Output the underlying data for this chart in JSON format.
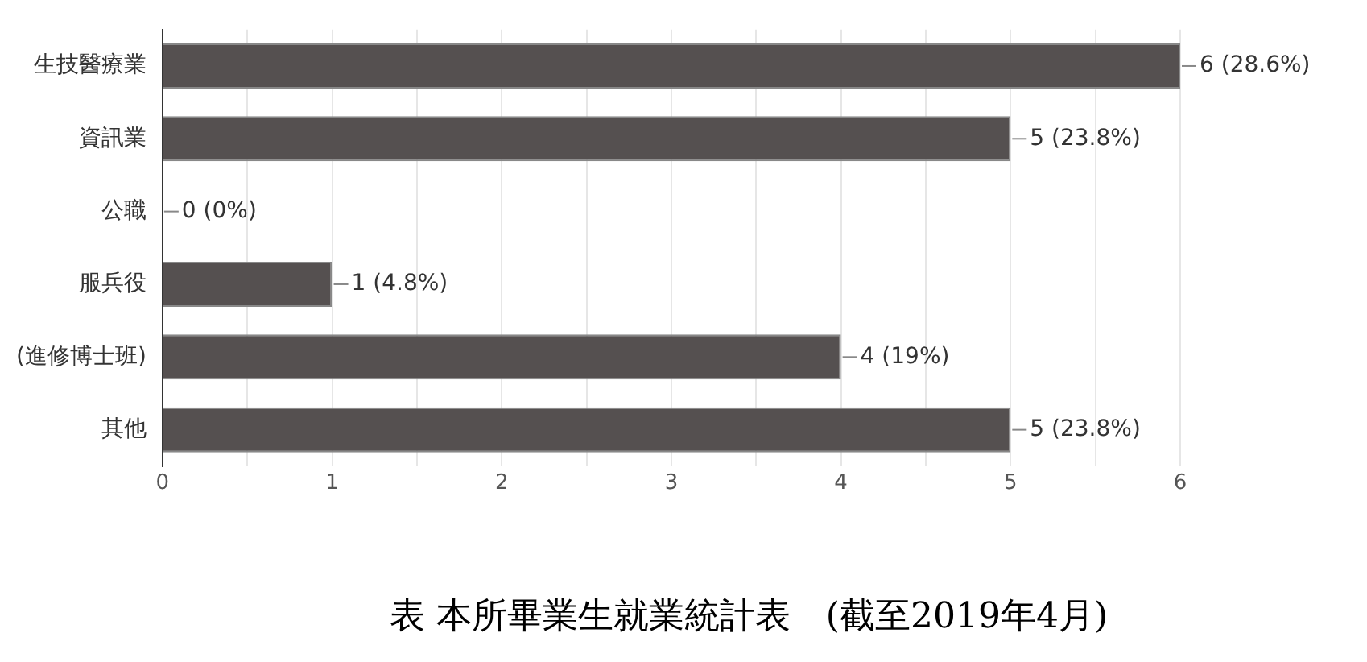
{
  "chart_data": {
    "type": "bar",
    "orientation": "horizontal",
    "categories": [
      "生技醫療業",
      "資訊業",
      "公職",
      "服兵役",
      "(進修博士班)",
      "其他"
    ],
    "values": [
      6,
      5,
      0,
      1,
      4,
      5
    ],
    "value_labels": [
      "6 (28.6%)",
      "5 (23.8%)",
      "0 (0%)",
      "1 (4.8%)",
      "4 (19%)",
      "5 (23.8%)"
    ],
    "color": "#555050",
    "xlim": [
      0,
      6
    ],
    "xticks": [
      0,
      {
        "value": 0.5,
        "label": null
      },
      1,
      {
        "value": 1.5,
        "label": null
      },
      2,
      {
        "value": 2.5,
        "label": null
      },
      3,
      {
        "value": 3.5,
        "label": null
      },
      4,
      {
        "value": 4.5,
        "label": null
      },
      5,
      {
        "value": 5.5,
        "label": null
      },
      6
    ],
    "grid": "x",
    "annotations": [
      "表 本所畢業生就業統計表　(截至2019年4月)"
    ]
  }
}
